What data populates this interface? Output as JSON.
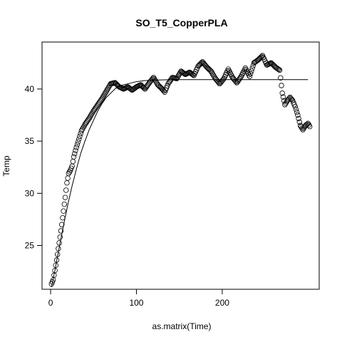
{
  "chart_data": {
    "type": "scatter",
    "title": "SO_T5_CopperPLA",
    "xlabel": "as.matrix(Time)",
    "ylabel": "Temp",
    "xlim": [
      -10,
      313
    ],
    "ylim": [
      20.8,
      44.5
    ],
    "x_ticks": [
      0,
      100,
      200
    ],
    "y_ticks": [
      25,
      30,
      35,
      40
    ],
    "grid": false,
    "legend": "none",
    "point_shape": "open-circle",
    "anchors": [
      [
        1,
        21.3
      ],
      [
        3,
        21.7
      ],
      [
        5,
        22.6
      ],
      [
        7,
        23.6
      ],
      [
        9,
        24.7
      ],
      [
        11,
        25.8
      ],
      [
        13,
        27.0
      ],
      [
        15,
        28.3
      ],
      [
        17,
        29.6
      ],
      [
        19,
        31.0
      ],
      [
        21,
        31.9
      ],
      [
        23,
        32.2
      ],
      [
        25,
        32.6
      ],
      [
        27,
        33.5
      ],
      [
        30,
        34.4
      ],
      [
        33,
        35.2
      ],
      [
        36,
        36.0
      ],
      [
        40,
        36.6
      ],
      [
        45,
        37.2
      ],
      [
        50,
        37.9
      ],
      [
        55,
        38.5
      ],
      [
        60,
        39.1
      ],
      [
        65,
        39.8
      ],
      [
        70,
        40.5
      ],
      [
        75,
        40.6
      ],
      [
        80,
        40.2
      ],
      [
        85,
        40.0
      ],
      [
        90,
        40.2
      ],
      [
        95,
        39.9
      ],
      [
        100,
        40.2
      ],
      [
        105,
        40.4
      ],
      [
        110,
        40.0
      ],
      [
        115,
        40.6
      ],
      [
        120,
        41.1
      ],
      [
        125,
        40.4
      ],
      [
        130,
        40.0
      ],
      [
        133,
        39.7
      ],
      [
        137,
        40.5
      ],
      [
        142,
        41.1
      ],
      [
        147,
        41.0
      ],
      [
        152,
        41.7
      ],
      [
        157,
        41.4
      ],
      [
        162,
        41.6
      ],
      [
        167,
        41.3
      ],
      [
        172,
        42.2
      ],
      [
        177,
        42.6
      ],
      [
        182,
        42.1
      ],
      [
        187,
        41.7
      ],
      [
        192,
        41.0
      ],
      [
        197,
        40.5
      ],
      [
        202,
        41.0
      ],
      [
        207,
        41.9
      ],
      [
        212,
        41.1
      ],
      [
        217,
        40.6
      ],
      [
        222,
        41.2
      ],
      [
        227,
        42.0
      ],
      [
        232,
        41.2
      ],
      [
        237,
        42.5
      ],
      [
        242,
        42.8
      ],
      [
        247,
        43.2
      ],
      [
        252,
        42.3
      ],
      [
        257,
        42.5
      ],
      [
        262,
        42.1
      ],
      [
        267,
        41.8
      ],
      [
        270,
        39.6
      ],
      [
        273,
        38.5
      ],
      [
        276,
        38.9
      ],
      [
        279,
        39.2
      ],
      [
        282,
        38.9
      ],
      [
        285,
        38.3
      ],
      [
        288,
        37.5
      ],
      [
        291,
        36.5
      ],
      [
        294,
        36.1
      ],
      [
        297,
        36.5
      ],
      [
        300,
        36.7
      ],
      [
        302,
        36.4
      ]
    ],
    "series": [
      {
        "type": "points",
        "x_range": [
          1,
          302
        ],
        "count": 302
      },
      {
        "type": "fitted-line",
        "x": [
          1,
          5,
          10,
          15,
          20,
          25,
          30,
          35,
          40,
          45,
          50,
          55,
          60,
          65,
          70,
          75,
          80,
          90,
          100,
          110,
          120,
          140,
          160,
          200,
          240,
          300
        ],
        "y": [
          21.0,
          22.6,
          24.8,
          26.9,
          28.9,
          30.7,
          32.3,
          33.8,
          35.0,
          36.1,
          37.0,
          37.9,
          38.6,
          39.2,
          39.6,
          40.0,
          40.3,
          40.5,
          40.7,
          40.8,
          40.85,
          40.9,
          40.9,
          40.9,
          40.9,
          40.9
        ]
      }
    ]
  }
}
